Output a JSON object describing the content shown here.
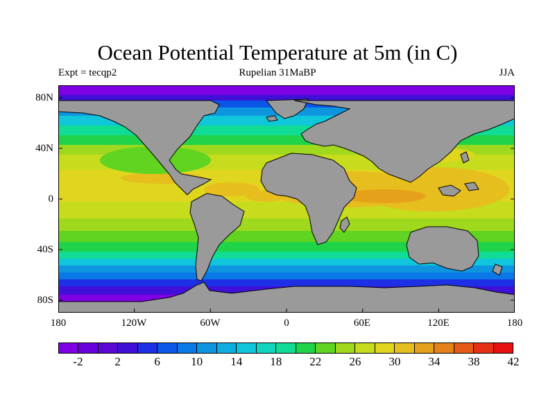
{
  "title": "Ocean Potential Temperature at 5m (in C)",
  "experiment": "Expt = tecqp2",
  "period": "Rupelian  31MaBP",
  "season": "JJA",
  "map": {
    "projection": "equirectangular",
    "land_color": "#9a9a9a",
    "coastline_color": "#000000",
    "lat_labels": [
      "80N",
      "40N",
      "0",
      "40S",
      "80S"
    ],
    "lon_labels": [
      "180",
      "120W",
      "60W",
      "0",
      "60E",
      "120E",
      "180"
    ]
  },
  "colorbar": {
    "colors": [
      "#8000e6",
      "#6a00dc",
      "#5a06d4",
      "#4010d8",
      "#1e30e6",
      "#0a56e6",
      "#0a78e6",
      "#0e95e0",
      "#10aee0",
      "#10c6da",
      "#10d6c0",
      "#10dc96",
      "#20d44a",
      "#60d420",
      "#a0d81e",
      "#c8dc1e",
      "#e0d61e",
      "#e6be1e",
      "#e6a01a",
      "#e68018",
      "#e65a18",
      "#e63016",
      "#e61010"
    ],
    "labels": [
      "-2",
      "2",
      "6",
      "10",
      "14",
      "18",
      "22",
      "26",
      "30",
      "34",
      "38",
      "42"
    ]
  }
}
